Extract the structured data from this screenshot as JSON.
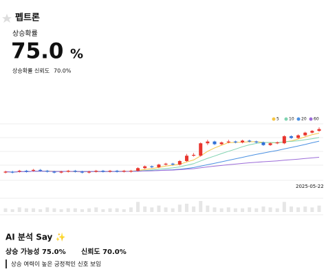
{
  "header": {
    "title": "펩트론"
  },
  "probability": {
    "label": "상승확률",
    "value": "75.0",
    "unit": "%"
  },
  "confidence": {
    "label": "상승확률 신뢰도",
    "value": "70.0%"
  },
  "chart_data": {
    "type": "candlestick",
    "up_color": "#e8352e",
    "down_color": "#2f6fd6",
    "series": [
      {
        "name": "5",
        "color": "#f5c542"
      },
      {
        "name": "10",
        "color": "#7fd3b0"
      },
      {
        "name": "20",
        "color": "#4a90e2"
      },
      {
        "name": "60",
        "color": "#9b6bd8"
      }
    ],
    "annotation": "2025-05-22",
    "open": [
      25,
      26,
      26,
      27,
      27,
      28,
      27,
      26,
      25,
      26,
      27,
      26,
      25,
      26,
      27,
      26,
      27,
      26,
      26,
      27,
      30,
      32,
      31,
      34,
      35,
      34,
      38,
      44,
      44,
      58,
      60,
      57,
      59,
      60,
      59,
      61,
      60,
      59,
      56,
      58,
      58,
      66,
      64,
      67,
      70,
      72
    ],
    "close": [
      26,
      25,
      27,
      26,
      28,
      27,
      26,
      25,
      26,
      27,
      26,
      25,
      26,
      27,
      26,
      27,
      26,
      27,
      27,
      30,
      32,
      31,
      34,
      35,
      34,
      38,
      44,
      45,
      58,
      60,
      57,
      59,
      60,
      59,
      61,
      60,
      59,
      56,
      58,
      59,
      66,
      64,
      67,
      70,
      72,
      74
    ],
    "high": [
      27,
      27,
      28,
      28,
      29,
      29,
      28,
      27,
      27,
      28,
      28,
      27,
      27,
      28,
      28,
      28,
      28,
      28,
      28,
      31,
      33,
      33,
      35,
      36,
      36,
      39,
      46,
      47,
      59,
      62,
      61,
      60,
      62,
      61,
      62,
      62,
      61,
      60,
      59,
      60,
      67,
      67,
      68,
      71,
      73,
      76
    ],
    "low": [
      24,
      24,
      25,
      25,
      26,
      26,
      25,
      24,
      24,
      25,
      25,
      24,
      24,
      25,
      25,
      25,
      25,
      25,
      25,
      26,
      29,
      30,
      30,
      33,
      33,
      33,
      37,
      43,
      43,
      56,
      56,
      56,
      58,
      58,
      58,
      59,
      58,
      55,
      55,
      57,
      57,
      63,
      63,
      66,
      69,
      71
    ],
    "volume": [
      4,
      3,
      5,
      4,
      4,
      3,
      5,
      4,
      3,
      4,
      4,
      3,
      4,
      5,
      3,
      4,
      4,
      3,
      5,
      11,
      6,
      5,
      7,
      5,
      4,
      8,
      9,
      6,
      12,
      7,
      5,
      4,
      5,
      4,
      4,
      5,
      4,
      6,
      5,
      4,
      11,
      6,
      5,
      6,
      5,
      7
    ]
  },
  "analysis": {
    "title": "AI 분석 Say ✨",
    "probability": "상승 가능성 75.0%",
    "confidence": "신뢰도 70.0%",
    "note": "상승 여력이 높은 긍정적인 신호 보임"
  }
}
